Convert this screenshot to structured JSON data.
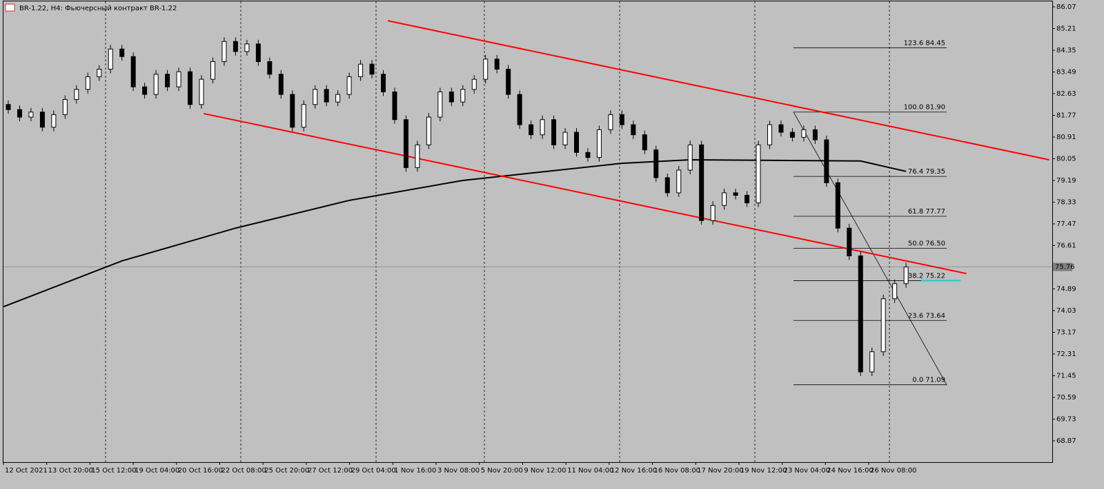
{
  "header": {
    "title": "BR-1.22, H4:  Фьючерсный контракт BR-1.22"
  },
  "price_axis": {
    "ticks": [
      86.07,
      85.21,
      84.35,
      83.49,
      82.63,
      81.77,
      80.91,
      80.05,
      79.19,
      78.33,
      77.47,
      76.61,
      74.89,
      74.03,
      73.17,
      72.31,
      71.45,
      70.59,
      69.73,
      68.87
    ],
    "current": 75.76
  },
  "time_axis": {
    "labels": [
      "12 Oct 2021",
      "13 Oct 20:00",
      "15 Oct 12:00",
      "19 Oct 04:00",
      "20 Oct 16:00",
      "22 Oct 08:00",
      "25 Oct 20:00",
      "27 Oct 12:00",
      "29 Oct 04:00",
      "1 Nov 16:00",
      "3 Nov 08:00",
      "5 Nov 20:00",
      "9 Nov 12:00",
      "11 Nov 04:00",
      "12 Nov 16:00",
      "16 Nov 08:00",
      "17 Nov 20:00",
      "19 Nov 12:00",
      "23 Nov 04:00",
      "24 Nov 16:00",
      "26 Nov 08:00"
    ]
  },
  "chart": {
    "open": 82.2,
    "closes": [
      82.0,
      81.7,
      81.9,
      81.3,
      81.8,
      82.4,
      82.8,
      83.3,
      83.6,
      84.4,
      84.1,
      82.9,
      82.6,
      83.4,
      82.9,
      83.5,
      82.2,
      83.2,
      83.9,
      84.7,
      84.3,
      84.6,
      83.9,
      83.4,
      82.6,
      81.3,
      82.2,
      82.8,
      82.3,
      82.6,
      83.3,
      83.8,
      83.4,
      82.7,
      81.6,
      79.7,
      80.6,
      81.7,
      82.7,
      82.3,
      82.8,
      83.2,
      84.0,
      83.6,
      82.6,
      81.4,
      81.0,
      81.6,
      80.6,
      81.1,
      80.3,
      80.1,
      81.2,
      81.8,
      81.4,
      81.0,
      80.4,
      79.3,
      78.7,
      79.6,
      80.6,
      77.6,
      78.2,
      78.7,
      78.6,
      78.3,
      80.6,
      81.4,
      81.1,
      80.9,
      81.2,
      80.8,
      79.1,
      77.3,
      76.2,
      71.6,
      72.4,
      74.5,
      75.1,
      75.76
    ],
    "ma200": [
      [
        -0.4,
        74.19
      ],
      [
        10,
        76.0
      ],
      [
        20,
        77.3
      ],
      [
        30,
        78.4
      ],
      [
        40,
        79.19
      ],
      [
        54,
        79.87
      ],
      [
        60,
        80.01
      ],
      [
        75,
        79.96
      ],
      [
        79,
        79.55
      ]
    ],
    "channel": [
      [
        [
          33.4,
          85.52
        ],
        [
          91.6,
          80.01
        ]
      ],
      [
        [
          17.2,
          81.84
        ],
        [
          84.3,
          75.5
        ]
      ]
    ],
    "fib": [
      {
        "label": "123.6 84.45",
        "price": 84.45
      },
      {
        "label": "100.0 81.90",
        "price": 81.9
      },
      {
        "label": "76.4 79.35",
        "price": 79.35
      },
      {
        "label": "61.8 77.77",
        "price": 77.77
      },
      {
        "label": "50.0 76.50",
        "price": 76.5
      },
      {
        "label": "38.2 75.22",
        "price": 75.22
      },
      {
        "label": "23.6 73.64",
        "price": 73.64
      },
      {
        "label": "0.0 71.09",
        "price": 71.09
      }
    ]
  }
}
